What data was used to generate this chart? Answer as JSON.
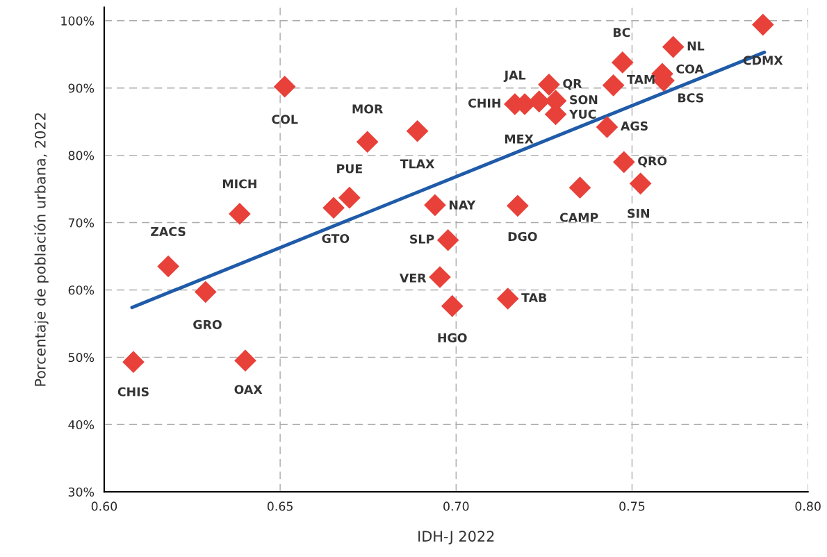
{
  "chart_data": {
    "type": "scatter",
    "xlabel": "IDH-J 2022",
    "ylabel": "Porcentaje de población urbana, 2022",
    "xlim": [
      0.6,
      0.8
    ],
    "ylim": [
      30,
      102
    ],
    "xticks": [
      {
        "value": 0.6,
        "label": "0.60"
      },
      {
        "value": 0.65,
        "label": "0.65"
      },
      {
        "value": 0.7,
        "label": "0.70"
      },
      {
        "value": 0.75,
        "label": "0.75"
      },
      {
        "value": 0.8,
        "label": "0.80"
      }
    ],
    "yticks": [
      {
        "value": 30,
        "label": "30%"
      },
      {
        "value": 40,
        "label": "40%"
      },
      {
        "value": 50,
        "label": "50%"
      },
      {
        "value": 60,
        "label": "60%"
      },
      {
        "value": 70,
        "label": "70%"
      },
      {
        "value": 80,
        "label": "80%"
      },
      {
        "value": 90,
        "label": "90%"
      },
      {
        "value": 100,
        "label": "100%"
      }
    ],
    "grid": true,
    "legend": false,
    "series": [
      {
        "marker": "diamond",
        "color": "#e8413a",
        "x": [
          0.6083,
          0.6182,
          0.6288,
          0.6401,
          0.6385,
          0.6513,
          0.6652,
          0.6697,
          0.6748,
          0.689,
          0.694,
          0.6977,
          0.6954,
          0.6989,
          0.7147,
          0.7175,
          0.7167,
          0.7195,
          0.7236,
          0.7264,
          0.7283,
          0.7283,
          0.7352,
          0.7429,
          0.7447,
          0.7473,
          0.7477,
          0.7524,
          0.7586,
          0.759,
          0.7617,
          0.7872
        ],
        "values": [
          49.3,
          63.5,
          59.7,
          49.5,
          71.3,
          90.2,
          72.2,
          73.7,
          82.0,
          83.6,
          72.6,
          67.4,
          61.9,
          57.6,
          58.7,
          72.5,
          87.6,
          87.6,
          88.0,
          90.5,
          88.1,
          86.1,
          75.2,
          84.2,
          90.4,
          93.8,
          79.0,
          75.8,
          92.1,
          91.1,
          96.1,
          99.4
        ]
      },
      {
        "type": "line",
        "color": "#1f5ba8",
        "x": [
          0.6079,
          0.7876
        ],
        "values": [
          57.4,
          95.3
        ]
      }
    ],
    "annotations": [
      {
        "text": "CHIS",
        "x": 0.6083,
        "y": 49.3
      },
      {
        "text": "ZACS",
        "x": 0.6182,
        "y": 63.5
      },
      {
        "text": "GRO",
        "x": 0.6288,
        "y": 59.7
      },
      {
        "text": "OAX",
        "x": 0.6401,
        "y": 49.5
      },
      {
        "text": "MICH",
        "x": 0.6385,
        "y": 71.3
      },
      {
        "text": "COL",
        "x": 0.6513,
        "y": 90.2
      },
      {
        "text": "GTO",
        "x": 0.6652,
        "y": 72.2
      },
      {
        "text": "PUE",
        "x": 0.6697,
        "y": 73.7
      },
      {
        "text": "MOR",
        "x": 0.6748,
        "y": 82.0
      },
      {
        "text": "TLAX",
        "x": 0.689,
        "y": 83.6
      },
      {
        "text": "NAY",
        "x": 0.694,
        "y": 72.6
      },
      {
        "text": "SLP",
        "x": 0.6977,
        "y": 67.4
      },
      {
        "text": "VER",
        "x": 0.6954,
        "y": 61.9
      },
      {
        "text": "HGO",
        "x": 0.6989,
        "y": 57.6
      },
      {
        "text": "TAB",
        "x": 0.7147,
        "y": 58.7
      },
      {
        "text": "DGO",
        "x": 0.7175,
        "y": 72.5
      },
      {
        "text": "CHIH",
        "x": 0.7167,
        "y": 87.6
      },
      {
        "text": "JAL",
        "x": 0.7195,
        "y": 87.6
      },
      {
        "text": "MEX",
        "x": 0.7236,
        "y": 88.0
      },
      {
        "text": "QR",
        "x": 0.7264,
        "y": 90.5
      },
      {
        "text": "SON",
        "x": 0.7283,
        "y": 88.1
      },
      {
        "text": "YUC",
        "x": 0.7283,
        "y": 86.1
      },
      {
        "text": "CAMP",
        "x": 0.7352,
        "y": 75.2
      },
      {
        "text": "AGS",
        "x": 0.7429,
        "y": 84.2
      },
      {
        "text": "TAM",
        "x": 0.7447,
        "y": 90.4
      },
      {
        "text": "BC",
        "x": 0.7473,
        "y": 93.8
      },
      {
        "text": "QRO",
        "x": 0.7477,
        "y": 79.0
      },
      {
        "text": "SIN",
        "x": 0.7524,
        "y": 75.8
      },
      {
        "text": "COA",
        "x": 0.7586,
        "y": 92.1
      },
      {
        "text": "BCS",
        "x": 0.759,
        "y": 91.1
      },
      {
        "text": "NL",
        "x": 0.7617,
        "y": 96.1
      },
      {
        "text": "CDMX",
        "x": 0.7872,
        "y": 99.4
      }
    ]
  }
}
